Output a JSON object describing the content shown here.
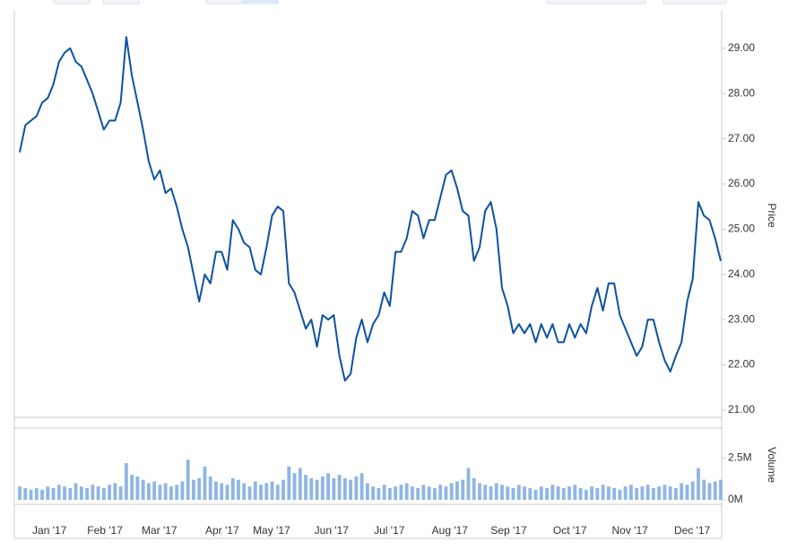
{
  "chart_data": [
    {
      "type": "line",
      "axis_label": "Price",
      "color": "#0d52a0",
      "xlim": [
        0,
        125
      ],
      "xticks": [
        {
          "value": 5.3,
          "label": "Jan '17"
        },
        {
          "value": 15.2,
          "label": "Feb '17"
        },
        {
          "value": 24.9,
          "label": "Mar '17"
        },
        {
          "value": 36.1,
          "label": "Apr '17"
        },
        {
          "value": 44.9,
          "label": "May '17"
        },
        {
          "value": 55.6,
          "label": "Jun '17"
        },
        {
          "value": 65.9,
          "label": "Jul '17"
        },
        {
          "value": 76.7,
          "label": "Aug '17"
        },
        {
          "value": 87.2,
          "label": "Sep '17"
        },
        {
          "value": 98.1,
          "label": "Oct '17"
        },
        {
          "value": 108.8,
          "label": "Nov '17"
        },
        {
          "value": 119.9,
          "label": "Dec '17"
        }
      ],
      "ylim": [
        20.84,
        29.83
      ],
      "yticks": [
        {
          "value": 21,
          "label": "21.00"
        },
        {
          "value": 22,
          "label": "22.00"
        },
        {
          "value": 23,
          "label": "23.00"
        },
        {
          "value": 24,
          "label": "24.00"
        },
        {
          "value": 25,
          "label": "25.00"
        },
        {
          "value": 26,
          "label": "26.00"
        },
        {
          "value": 27,
          "label": "27.00"
        },
        {
          "value": 28,
          "label": "28.00"
        },
        {
          "value": 29,
          "label": "29.00"
        }
      ],
      "values": [
        26.7,
        27.3,
        27.4,
        27.5,
        27.8,
        27.9,
        28.2,
        28.7,
        28.9,
        29.0,
        28.7,
        28.6,
        28.3,
        28.0,
        27.6,
        27.2,
        27.4,
        27.4,
        27.8,
        29.25,
        28.4,
        27.8,
        27.2,
        26.5,
        26.1,
        26.3,
        25.8,
        25.9,
        25.5,
        25.0,
        24.6,
        24.0,
        23.4,
        24.0,
        23.8,
        24.5,
        24.5,
        24.1,
        25.2,
        25.0,
        24.7,
        24.6,
        24.1,
        24.0,
        24.6,
        25.3,
        25.5,
        25.4,
        23.8,
        23.6,
        23.2,
        22.8,
        23.0,
        22.4,
        23.1,
        23.0,
        23.1,
        22.2,
        21.65,
        21.8,
        22.6,
        23.0,
        22.5,
        22.9,
        23.1,
        23.6,
        23.3,
        24.5,
        24.5,
        24.8,
        25.4,
        25.3,
        24.8,
        25.2,
        25.2,
        25.7,
        26.2,
        26.3,
        25.9,
        25.4,
        25.3,
        24.3,
        24.6,
        25.4,
        25.6,
        25.0,
        23.7,
        23.3,
        22.7,
        22.9,
        22.7,
        22.9,
        22.5,
        22.9,
        22.6,
        22.9,
        22.5,
        22.5,
        22.9,
        22.6,
        22.9,
        22.7,
        23.3,
        23.7,
        23.2,
        23.8,
        23.8,
        23.1,
        22.8,
        22.5,
        22.2,
        22.4,
        23.0,
        23.0,
        22.5,
        22.1,
        21.85,
        22.2,
        22.5,
        23.4,
        23.9,
        25.6,
        25.3,
        25.2,
        24.8,
        24.3
      ]
    },
    {
      "type": "bar",
      "axis_label": "Volume",
      "color": "#8fb6e3",
      "xlim": [
        0,
        125
      ],
      "ylim": [
        0,
        4.3
      ],
      "yticks": [
        {
          "value": 0,
          "label": "0M"
        },
        {
          "value": 2.5,
          "label": "2.5M"
        }
      ],
      "values": [
        0.8,
        0.7,
        0.6,
        0.7,
        0.6,
        0.8,
        0.7,
        0.9,
        0.8,
        0.7,
        1.0,
        0.8,
        0.7,
        0.9,
        0.8,
        0.7,
        0.9,
        1.0,
        0.8,
        2.2,
        1.5,
        1.4,
        1.2,
        1.0,
        1.1,
        0.9,
        1.0,
        0.8,
        0.9,
        1.1,
        2.4,
        1.2,
        1.3,
        2.0,
        1.4,
        1.1,
        1.0,
        0.9,
        1.3,
        1.2,
        1.0,
        0.8,
        1.1,
        0.9,
        1.0,
        1.1,
        0.9,
        1.2,
        2.0,
        1.6,
        1.9,
        1.5,
        1.3,
        1.2,
        1.4,
        1.6,
        1.3,
        1.5,
        1.3,
        1.2,
        1.4,
        1.6,
        1.0,
        0.8,
        0.7,
        0.9,
        0.7,
        0.8,
        0.9,
        1.0,
        0.8,
        0.7,
        0.9,
        0.8,
        0.7,
        0.9,
        0.8,
        1.0,
        1.1,
        1.2,
        1.9,
        1.3,
        1.0,
        0.9,
        0.8,
        1.0,
        0.9,
        0.8,
        0.7,
        0.9,
        0.8,
        0.7,
        0.6,
        0.8,
        0.7,
        0.9,
        0.8,
        0.7,
        0.8,
        0.9,
        0.7,
        0.6,
        0.8,
        0.7,
        0.9,
        0.8,
        0.7,
        0.6,
        0.8,
        0.9,
        0.7,
        0.8,
        0.9,
        0.7,
        0.8,
        0.9,
        0.8,
        0.7,
        1.0,
        0.9,
        1.1,
        1.9,
        1.2,
        1.0,
        1.1,
        1.2
      ]
    }
  ]
}
